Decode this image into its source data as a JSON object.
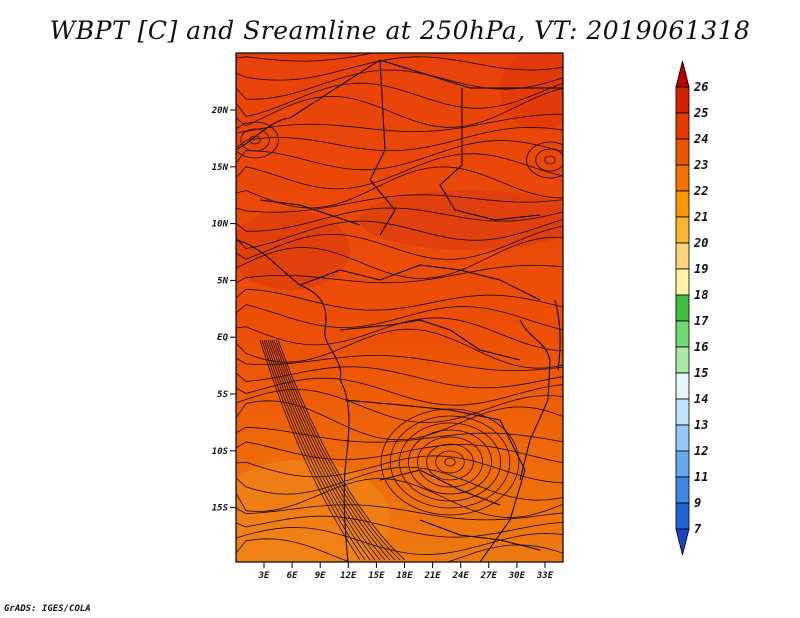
{
  "title": "WBPT [C] and Sreamline at 250hPa, VT: 2019061318",
  "footer": "GrADS: IGES/COLA",
  "lat_ticks": [
    "20N",
    "15N",
    "10N",
    "5N",
    "EQ",
    "5S",
    "10S",
    "15S"
  ],
  "lon_ticks": [
    "3E",
    "6E",
    "9E",
    "12E",
    "15E",
    "18E",
    "21E",
    "24E",
    "27E",
    "30E",
    "33E"
  ],
  "colorbar": {
    "labels": [
      "26",
      "25",
      "24",
      "23",
      "22",
      "21",
      "20",
      "19",
      "18",
      "17",
      "16",
      "15",
      "14",
      "13",
      "12",
      "11",
      "9",
      "7"
    ],
    "colors": [
      "#b80000",
      "#d42000",
      "#e63a00",
      "#ee5500",
      "#f77000",
      "#fa9600",
      "#fbb631",
      "#fcd27a",
      "#fdf2a6",
      "#3fbf3f",
      "#6fd86f",
      "#aae8a8",
      "#e3f7f7",
      "#c1e3fb",
      "#94c8f7",
      "#65a8ef",
      "#3d88e6",
      "#2262d6",
      "#1a44c4"
    ]
  }
}
